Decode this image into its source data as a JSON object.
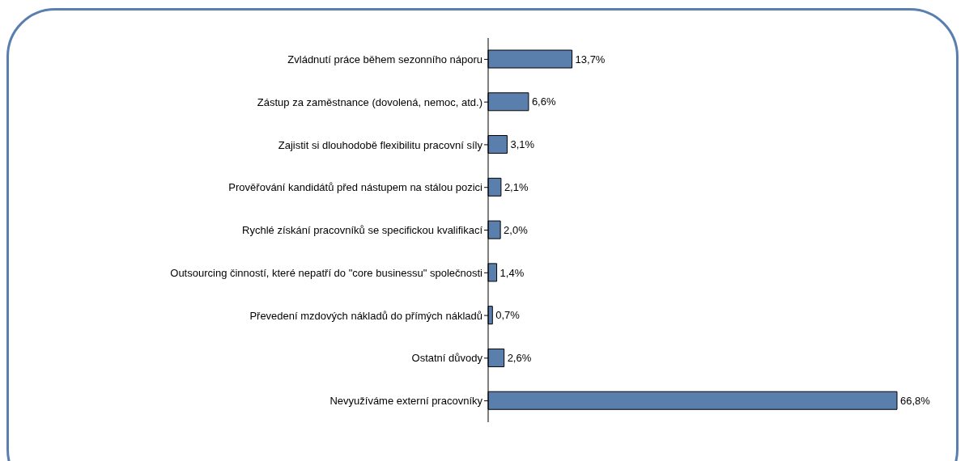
{
  "chart_data": {
    "type": "bar",
    "orientation": "horizontal",
    "categories": [
      "Zvládnutí práce během sezonního náporu",
      "Zástup za zaměstnance (dovolená, nemoc, atd.)",
      "Zajistit si dlouhodobě flexibilitu pracovní síly",
      "Prověřování kandidátů před nástupem na stálou pozici",
      "Rychlé získání pracovníků se specifickou kvalifikací",
      "Outsourcing činností, které nepatří do \"core businessu\" společnosti",
      "Převedení mzdových nákladů do přímých nákladů",
      "Ostatní důvody",
      "Nevyužíváme externí pracovníky"
    ],
    "values": [
      13.7,
      6.6,
      3.1,
      2.1,
      2.0,
      1.4,
      0.7,
      2.6,
      66.8
    ],
    "value_labels": [
      "13,7%",
      "6,6%",
      "3,1%",
      "2,1%",
      "2,0%",
      "1,4%",
      "0,7%",
      "2,6%",
      "66,8%"
    ],
    "color": "#5b7fad",
    "grid": false,
    "legend": false
  }
}
